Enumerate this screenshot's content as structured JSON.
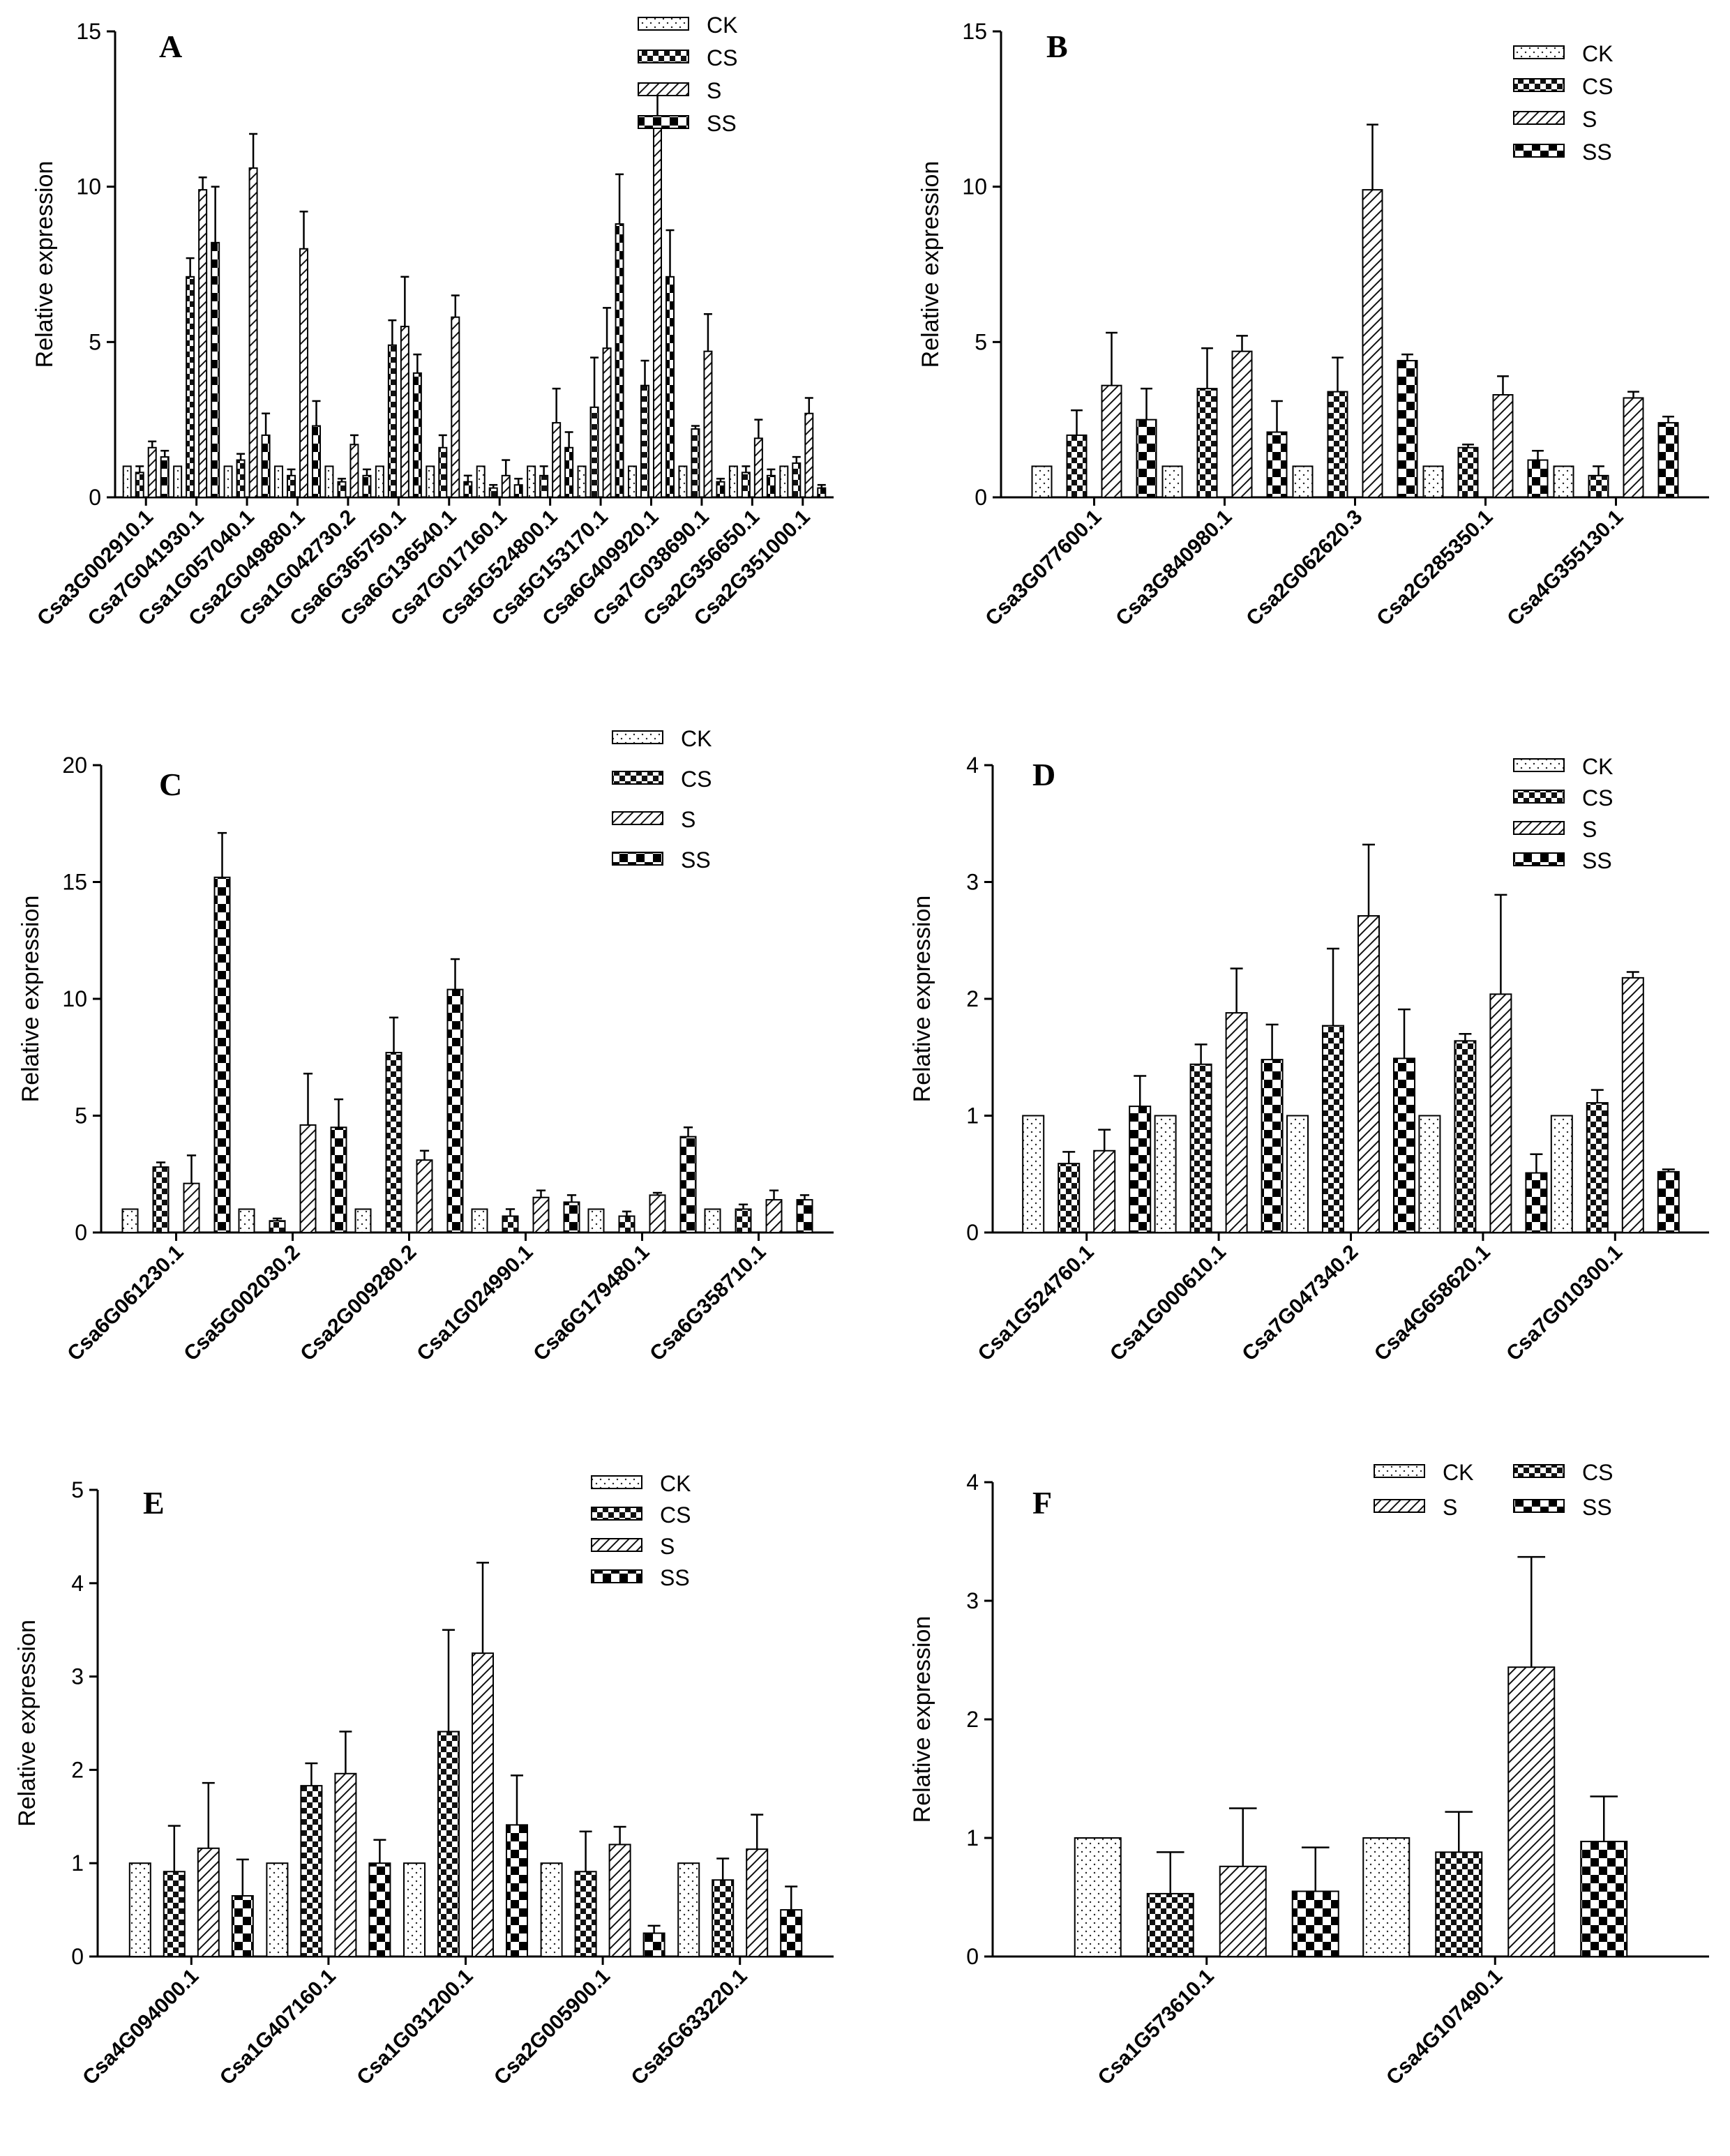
{
  "figure": {
    "series_names": [
      "CK",
      "CS",
      "S",
      "SS"
    ],
    "ylabel": "Relative expression"
  },
  "chart_data": [
    {
      "panel": "A",
      "type": "bar",
      "ylabel": "Relative expression",
      "ylim": [
        0,
        15
      ],
      "yticks": [
        0,
        5,
        10,
        15
      ],
      "legend_position": "top-right",
      "categories": [
        "Csa3G002910.1",
        "Csa7G041930.1",
        "Csa1G057040.1",
        "Csa2G049880.1",
        "Csa1G042730.2",
        "Csa6G365750.1",
        "Csa6G136540.1",
        "Csa7G017160.1",
        "Csa5G524800.1",
        "Csa5G153170.1",
        "Csa6G409920.1",
        "Csa7G038690.1",
        "Csa2G356650.1",
        "Csa2G351000.1"
      ],
      "series": [
        {
          "name": "CK",
          "values": [
            1,
            1,
            1,
            1,
            1,
            1,
            1,
            1,
            1,
            1,
            1,
            1,
            1,
            1
          ],
          "errors": [
            0,
            0,
            0,
            0,
            0,
            0,
            0,
            0,
            0,
            0,
            0,
            0,
            0,
            0
          ]
        },
        {
          "name": "CS",
          "values": [
            0.8,
            7.1,
            1.2,
            0.7,
            0.5,
            4.9,
            1.6,
            0.3,
            0.7,
            2.9,
            3.6,
            2.2,
            0.8,
            1.1
          ],
          "errors": [
            0.2,
            0.6,
            0.2,
            0.2,
            0.1,
            0.8,
            0.4,
            0.1,
            0.3,
            1.6,
            0.8,
            0.1,
            0.2,
            0.2
          ]
        },
        {
          "name": "S",
          "values": [
            1.6,
            9.9,
            10.6,
            8.0,
            1.7,
            5.5,
            5.8,
            0.7,
            2.4,
            4.8,
            11.9,
            4.7,
            1.9,
            2.7
          ],
          "errors": [
            0.2,
            0.4,
            1.1,
            1.2,
            0.3,
            1.6,
            0.7,
            0.5,
            1.1,
            1.3,
            1.3,
            1.2,
            0.6,
            0.5
          ]
        },
        {
          "name": "SS",
          "values": [
            1.3,
            8.2,
            2.0,
            2.3,
            0.7,
            4.0,
            0.5,
            0.4,
            1.6,
            8.8,
            7.1,
            0.5,
            0.7,
            0.3
          ],
          "errors": [
            0.2,
            1.8,
            0.7,
            0.8,
            0.2,
            0.6,
            0.2,
            0.2,
            0.5,
            1.6,
            1.5,
            0.1,
            0.2,
            0.1
          ]
        }
      ]
    },
    {
      "panel": "B",
      "type": "bar",
      "ylabel": "Relative expression",
      "ylim": [
        0,
        15
      ],
      "yticks": [
        0,
        5,
        10,
        15
      ],
      "legend_position": "top-right",
      "categories": [
        "Csa3G077600.1",
        "Csa3G840980.1",
        "Csa2G062620.3",
        "Csa2G285350.1",
        "Csa4G355130.1"
      ],
      "series": [
        {
          "name": "CK",
          "values": [
            1,
            1,
            1,
            1,
            1
          ],
          "errors": [
            0,
            0,
            0,
            0,
            0
          ]
        },
        {
          "name": "CS",
          "values": [
            2.0,
            3.5,
            3.4,
            1.6,
            0.7
          ],
          "errors": [
            0.8,
            1.3,
            1.1,
            0.1,
            0.3
          ]
        },
        {
          "name": "S",
          "values": [
            3.6,
            4.7,
            9.9,
            3.3,
            3.2
          ],
          "errors": [
            1.7,
            0.5,
            2.1,
            0.6,
            0.2
          ]
        },
        {
          "name": "SS",
          "values": [
            2.5,
            2.1,
            4.4,
            1.2,
            2.4
          ],
          "errors": [
            1.0,
            1.0,
            0.2,
            0.3,
            0.2
          ]
        }
      ]
    },
    {
      "panel": "C",
      "type": "bar",
      "ylabel": "Relative expression",
      "ylim": [
        0,
        20
      ],
      "yticks": [
        0,
        5,
        10,
        15,
        20
      ],
      "legend_position": "top-right",
      "categories": [
        "Csa6G061230.1",
        "Csa5G002030.2",
        "Csa2G009280.2",
        "Csa1G024990.1",
        "Csa6G179480.1",
        "Csa6G358710.1"
      ],
      "series": [
        {
          "name": "CK",
          "values": [
            1,
            1,
            1,
            1,
            1,
            1
          ],
          "errors": [
            0,
            0,
            0,
            0,
            0,
            0
          ]
        },
        {
          "name": "CS",
          "values": [
            2.8,
            0.5,
            7.7,
            0.7,
            0.7,
            1.0
          ],
          "errors": [
            0.2,
            0.1,
            1.5,
            0.3,
            0.2,
            0.2
          ]
        },
        {
          "name": "S",
          "values": [
            2.1,
            4.6,
            3.1,
            1.5,
            1.6,
            1.4
          ],
          "errors": [
            1.2,
            2.2,
            0.4,
            0.3,
            0.1,
            0.4
          ]
        },
        {
          "name": "SS",
          "values": [
            15.2,
            4.5,
            10.4,
            1.3,
            4.1,
            1.4
          ],
          "errors": [
            1.9,
            1.2,
            1.3,
            0.3,
            0.4,
            0.2
          ]
        }
      ]
    },
    {
      "panel": "D",
      "type": "bar",
      "ylabel": "Relative expression",
      "ylim": [
        0,
        4
      ],
      "yticks": [
        0,
        1,
        2,
        3,
        4
      ],
      "legend_position": "top-right",
      "categories": [
        "Csa1G524760.1",
        "Csa1G000610.1",
        "Csa7G047340.2",
        "Csa4G658620.1",
        "Csa7G010300.1"
      ],
      "series": [
        {
          "name": "CK",
          "values": [
            1,
            1,
            1,
            1,
            1
          ],
          "errors": [
            0,
            0,
            0,
            0,
            0
          ]
        },
        {
          "name": "CS",
          "values": [
            0.59,
            1.44,
            1.77,
            1.64,
            1.11
          ],
          "errors": [
            0.1,
            0.17,
            0.66,
            0.06,
            0.11
          ]
        },
        {
          "name": "S",
          "values": [
            0.7,
            1.88,
            2.71,
            2.04,
            2.18
          ],
          "errors": [
            0.18,
            0.38,
            0.61,
            0.85,
            0.05
          ]
        },
        {
          "name": "SS",
          "values": [
            1.08,
            1.48,
            1.49,
            0.51,
            0.52
          ],
          "errors": [
            0.26,
            0.3,
            0.42,
            0.16,
            0.02
          ]
        }
      ]
    },
    {
      "panel": "E",
      "type": "bar",
      "ylabel": "Relative expression",
      "ylim": [
        0,
        5
      ],
      "yticks": [
        0,
        1,
        2,
        3,
        4,
        5
      ],
      "legend_position": "top-right",
      "categories": [
        "Csa4G094000.1",
        "Csa1G407160.1",
        "Csa1G031200.1",
        "Csa2G005900.1",
        "Csa5G633220.1"
      ],
      "series": [
        {
          "name": "CK",
          "values": [
            1,
            1,
            1,
            1,
            1
          ],
          "errors": [
            0,
            0,
            0,
            0,
            0
          ]
        },
        {
          "name": "CS",
          "values": [
            0.91,
            1.83,
            2.41,
            0.91,
            0.82
          ],
          "errors": [
            0.49,
            0.24,
            1.09,
            0.43,
            0.23
          ]
        },
        {
          "name": "S",
          "values": [
            1.16,
            1.96,
            3.25,
            1.2,
            1.15
          ],
          "errors": [
            0.7,
            0.45,
            0.97,
            0.19,
            0.37
          ]
        },
        {
          "name": "SS",
          "values": [
            0.65,
            1.0,
            1.41,
            0.25,
            0.5
          ],
          "errors": [
            0.39,
            0.25,
            0.53,
            0.08,
            0.25
          ]
        }
      ]
    },
    {
      "panel": "F",
      "type": "bar",
      "ylabel": "Relative expression",
      "ylim": [
        0,
        4
      ],
      "yticks": [
        0,
        1,
        2,
        3,
        4
      ],
      "legend_position": "top-right",
      "legend_order": [
        "CK",
        "CS",
        "S",
        "SS"
      ],
      "categories": [
        "Csa1G573610.1",
        "Csa4G107490.1"
      ],
      "series": [
        {
          "name": "CK",
          "values": [
            1,
            1
          ],
          "errors": [
            0,
            0
          ]
        },
        {
          "name": "CS",
          "values": [
            0.53,
            0.88
          ],
          "errors": [
            0.35,
            0.34
          ]
        },
        {
          "name": "S",
          "values": [
            0.76,
            2.44
          ],
          "errors": [
            0.49,
            0.93
          ]
        },
        {
          "name": "SS",
          "values": [
            0.55,
            0.97
          ],
          "errors": [
            0.37,
            0.38
          ]
        }
      ]
    }
  ]
}
